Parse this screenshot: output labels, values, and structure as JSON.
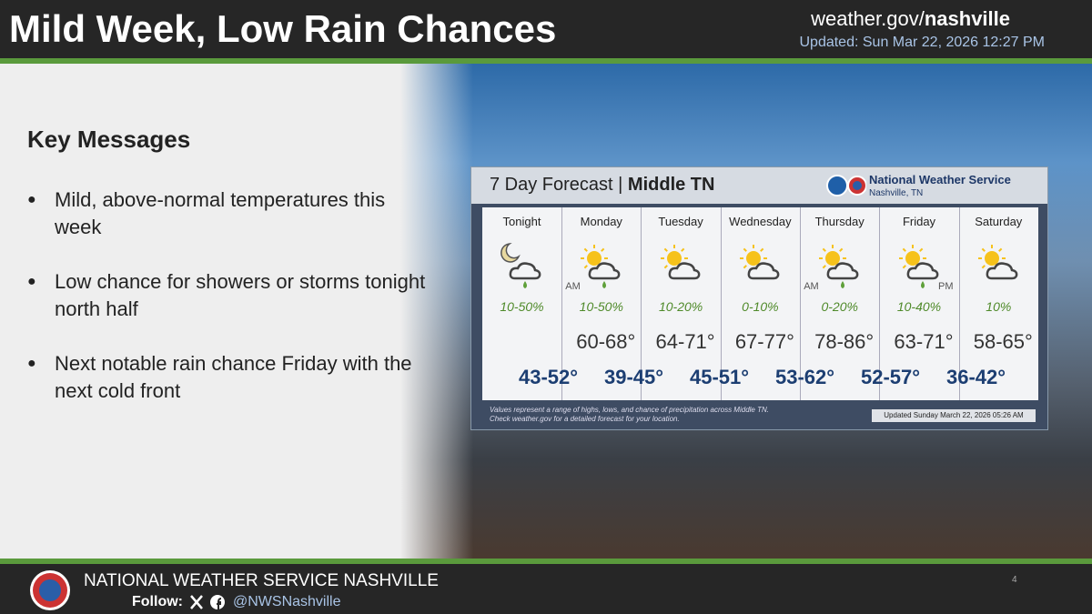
{
  "header": {
    "title": "Mild Week, Low Rain Chances",
    "site": "weather.gov/",
    "site_bold": "nashville",
    "updated": "Updated: Sun Mar 22, 2026 12:27 PM"
  },
  "key_messages": {
    "heading": "Key Messages",
    "items": [
      "Mild, above-normal temperatures this week",
      "Low chance for showers or storms tonight north half",
      "Next notable rain chance Friday with the next cold front"
    ]
  },
  "forecast": {
    "title": "7 Day Forecast",
    "region": "Middle TN",
    "office": "National Weather Service",
    "office_location": "Nashville, TN",
    "days": [
      {
        "name": "Tonight",
        "pop": "10-50%"
      },
      {
        "name": "Monday",
        "period": "AM",
        "pop": "10-50%",
        "high": "60-68°"
      },
      {
        "name": "Tuesday",
        "pop": "10-20%",
        "high": "64-71°"
      },
      {
        "name": "Wednesday",
        "pop": "0-10%",
        "high": "67-77°"
      },
      {
        "name": "Thursday",
        "period": "AM",
        "pop": "0-20%",
        "high": "78-86°"
      },
      {
        "name": "Friday",
        "period": "PM",
        "pop": "10-40%",
        "high": "63-71°"
      },
      {
        "name": "Saturday",
        "pop": "10%",
        "high": "58-65°"
      }
    ],
    "lows": [
      "43-52°",
      "39-45°",
      "45-51°",
      "53-62°",
      "52-57°",
      "36-42°"
    ],
    "note": "Values represent a range of highs, lows, and chance of precipitation across Middle TN.",
    "note2": "Check weather.gov for a detailed forecast for your location.",
    "updated": "Updated Sunday March 22, 2026 05:26 AM"
  },
  "footer": {
    "org": "NATIONAL WEATHER SERVICE NASHVILLE",
    "follow": "Follow:",
    "handle": "@NWSNashville",
    "page": "4"
  }
}
